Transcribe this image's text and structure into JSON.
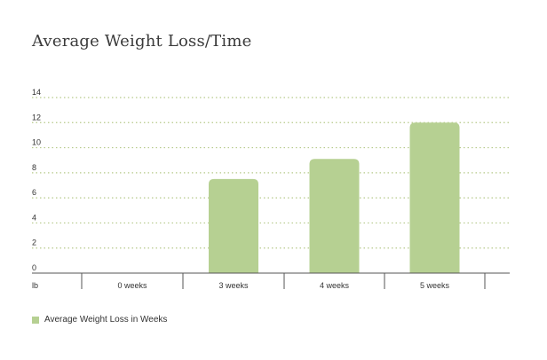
{
  "chart_data": {
    "type": "bar",
    "title": "Average Weight Loss/Time",
    "y_unit_label": "lb",
    "categories": [
      "0 weeks",
      "3 weeks",
      "4 weeks",
      "5 weeks"
    ],
    "series": [
      {
        "name": "Average Weight Loss in Weeks",
        "values": [
          0,
          7.5,
          9.1,
          12
        ],
        "color": "#b6d092"
      }
    ],
    "ylim": [
      0,
      14
    ],
    "yticks": [
      0,
      2,
      4,
      6,
      8,
      10,
      12,
      14
    ],
    "grid": true,
    "grid_color": "#b6c98a",
    "legend_position": "bottom-left"
  }
}
